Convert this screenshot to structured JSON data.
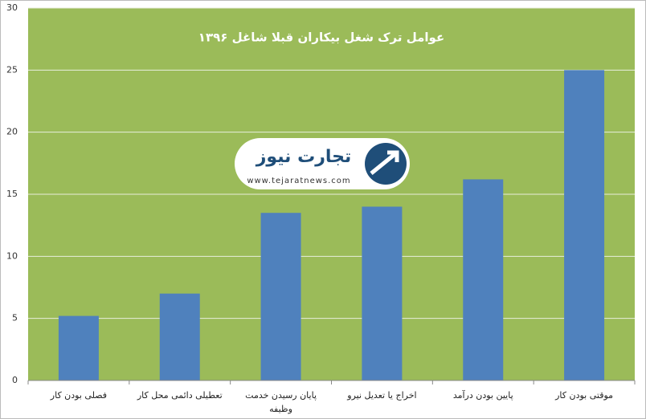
{
  "chart_data": {
    "type": "bar",
    "title": "عوامل ترک شغل بیکاران قبلا شاغل ۱۳۹۶",
    "categories": [
      "فصلی بودن کار",
      "تعطیلی دائمی محل کار",
      "پایان رسیدن خدمت وظیفه",
      "اخراج یا تعدیل نیرو",
      "پایین بودن درآمد",
      "موقتی بودن کار"
    ],
    "values": [
      5.2,
      7,
      13.5,
      14,
      16.2,
      25
    ],
    "color": "#4f81bd",
    "plot_background": "#9bbb59",
    "ylim": [
      0,
      30
    ],
    "yticks": [
      0,
      5,
      10,
      15,
      20,
      25,
      30
    ],
    "grid": true,
    "watermark_text": "تجارت نیوز",
    "watermark_url": "www.tejaratnews.com"
  }
}
